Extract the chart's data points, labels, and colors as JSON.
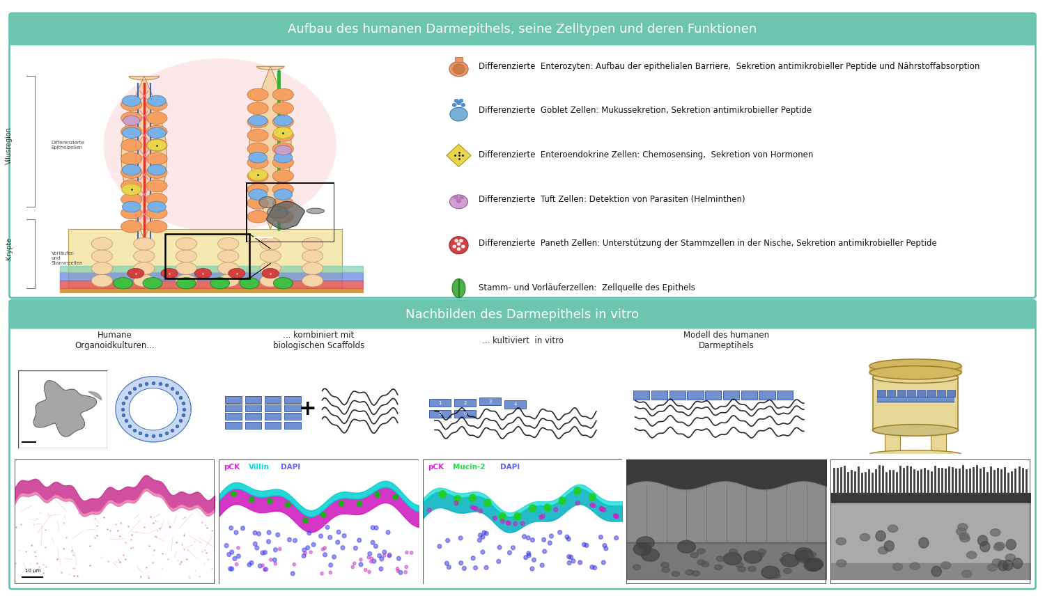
{
  "fig_width": 15.0,
  "fig_height": 8.59,
  "dpi": 100,
  "bg": "#ffffff",
  "border_color": "#5abfaa",
  "header_color": "#6dc5b0",
  "header_text_color": "#ffffff",
  "panel1_title": "Aufbau des humanen Darmepithels, seine Zelltypen und deren Funktionen",
  "panel2_title": "Nachbilden des Darmepithels in vitro",
  "panel1_bg": "#ffffff",
  "panel2_bg": "#ffffff",
  "title_fontsize": 13,
  "legend_fontsize": 8.5,
  "legend_items": [
    {
      "color": "#e8956a",
      "text": "Differenzierte  Enterozyten: Aufbau der epithelialen Barriere,  Sekretion antimikrobieller Peptide und Nährstoffabsorption"
    },
    {
      "color": "#7ab0d4",
      "text": "Differenzierte  Goblet Zellen: Mukussekretion, Sekretion antimikrobieller Peptide"
    },
    {
      "color": "#e8d44d",
      "text": "Differenzierte  Enteroendokrine Zellen: Chemosensing,  Sekretion von Hormonen"
    },
    {
      "color": "#d4a0d4",
      "text": "Differenzierte  Tuft Zellen: Detektion von Parasiten (Helminthen)"
    },
    {
      "color": "#d44040",
      "text": "Differenzierte  Paneth Zellen: Unterstützung der Stammzellen in der Nische, Sekretion antimikrobieller Peptide"
    },
    {
      "color": "#50b050",
      "text": "Stamm- und Vorläuferzellen:  Zellquelle des Epithels"
    }
  ],
  "panel2_labels": [
    "Humane\nOrganoidkulturen...",
    "... kombiniert mit\nbiologischen Scaffolds",
    "... kultiviert  in vitro",
    "Modell des humanen\nDarmeptihels",
    ""
  ],
  "micro_labels": [
    [],
    [
      "pCK",
      "Villin",
      "DAPI"
    ],
    [
      "pCK",
      "Mucin-2",
      "DAPI"
    ],
    [],
    []
  ],
  "micro_label_colors": [
    [],
    [
      "#cc00cc",
      "#00e0e0",
      "#5555ff"
    ],
    [
      "#cc00cc",
      "#00e040",
      "#5555ff"
    ],
    [],
    []
  ]
}
